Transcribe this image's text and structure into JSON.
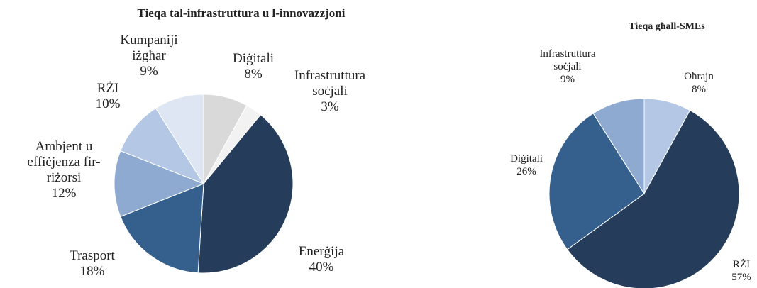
{
  "chart_data": [
    {
      "type": "pie",
      "title": "Tieqa tal-infrastruttura u l-innovazzjoni",
      "categories": [
        "Diġitali",
        "Infrastruttura\nsoċjali",
        "Enerġija",
        "Trasport",
        "Ambjent u\neffiċjenza fir-\nriżorsi",
        "RŻI",
        "Kumpaniji\niżgħar"
      ],
      "values": [
        8,
        3,
        40,
        18,
        12,
        10,
        9
      ],
      "value_labels": [
        "8%",
        "3%",
        "40%",
        "18%",
        "12%",
        "10%",
        "9%"
      ],
      "colors": [
        "#d9d9d9",
        "#f2f2f2",
        "#253d5b",
        "#355f8d",
        "#8eaad0",
        "#b4c7e4",
        "#dde6f2"
      ]
    },
    {
      "type": "pie",
      "title": "Tieqa għall-SMEs",
      "categories": [
        "Oħrajn",
        "RŻI",
        "Diġitali",
        "Infrastruttura\nsoċjali"
      ],
      "values": [
        8,
        57,
        26,
        9
      ],
      "value_labels": [
        "8%",
        "57%",
        "26%",
        "9%"
      ],
      "colors": [
        "#b4c7e4",
        "#253d5b",
        "#355f8d",
        "#8eaad0"
      ]
    }
  ]
}
